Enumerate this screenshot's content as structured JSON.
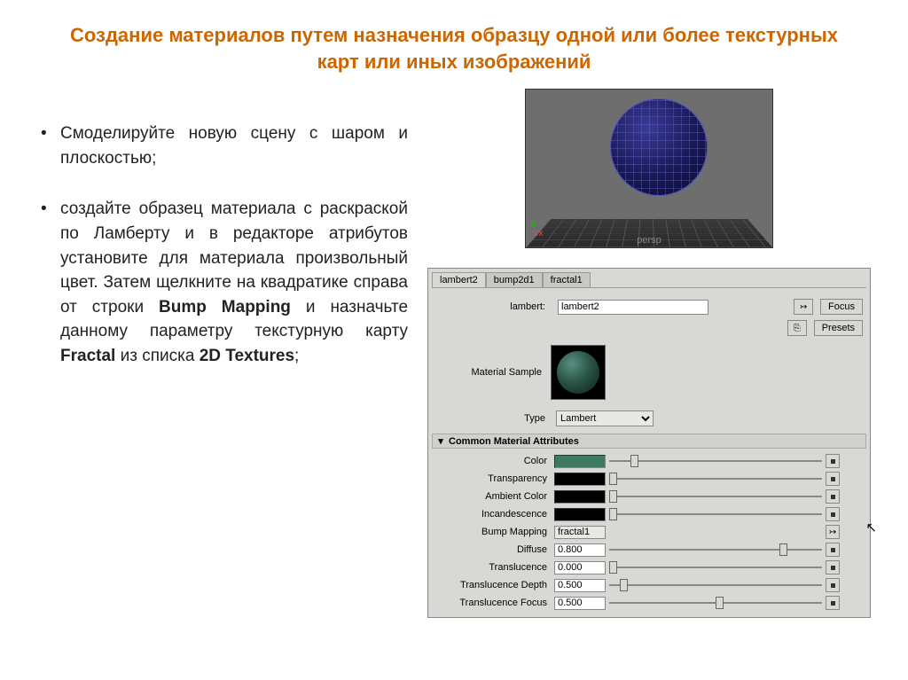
{
  "title": "Создание материалов путем назначения образцу одной или более текстурных карт или иных изображений",
  "bullets": [
    "Смоделируйте новую сцену с шаром и плоскостью;",
    "создайте образец материала с раскраской по Ламберту и в редакторе атрибутов установите для материала произвольный цвет. Затем щелкните на квадратике справа от строки <b>Bump Mapping</b> и назначьте данному параметру текстурную карту <b>Fractal</b> из списка <b>2D Textures</b>;"
  ],
  "viewport": {
    "persp_label": "persp",
    "axis_x": "x",
    "axis_z": "z"
  },
  "panel": {
    "tabs": [
      "lambert2",
      "bump2d1",
      "fractal1"
    ],
    "active_tab": 0,
    "name_label": "lambert:",
    "name_value": "lambert2",
    "focus_btn": "Focus",
    "presets_btn": "Presets",
    "sample_label": "Material Sample",
    "type_label": "Type",
    "type_value": "Lambert",
    "section": "Common Material Attributes",
    "attrs": [
      {
        "label": "Color",
        "kind": "swatch",
        "color": "#3f7a65",
        "slider_pos": 0.1
      },
      {
        "label": "Transparency",
        "kind": "swatch",
        "color": "#000000",
        "slider_pos": 0.0
      },
      {
        "label": "Ambient Color",
        "kind": "swatch",
        "color": "#000000",
        "slider_pos": 0.0
      },
      {
        "label": "Incandescence",
        "kind": "swatch",
        "color": "#000000",
        "slider_pos": 0.0
      },
      {
        "label": "Bump Mapping",
        "kind": "text",
        "value": "fractal1",
        "mapped": true
      },
      {
        "label": "Diffuse",
        "kind": "number",
        "value": "0.800",
        "slider_pos": 0.8
      },
      {
        "label": "Translucence",
        "kind": "number",
        "value": "0.000",
        "slider_pos": 0.0
      },
      {
        "label": "Translucence Depth",
        "kind": "number",
        "value": "0.500",
        "slider_pos": 0.05
      },
      {
        "label": "Translucence Focus",
        "kind": "number",
        "value": "0.500",
        "slider_pos": 0.5
      }
    ]
  }
}
